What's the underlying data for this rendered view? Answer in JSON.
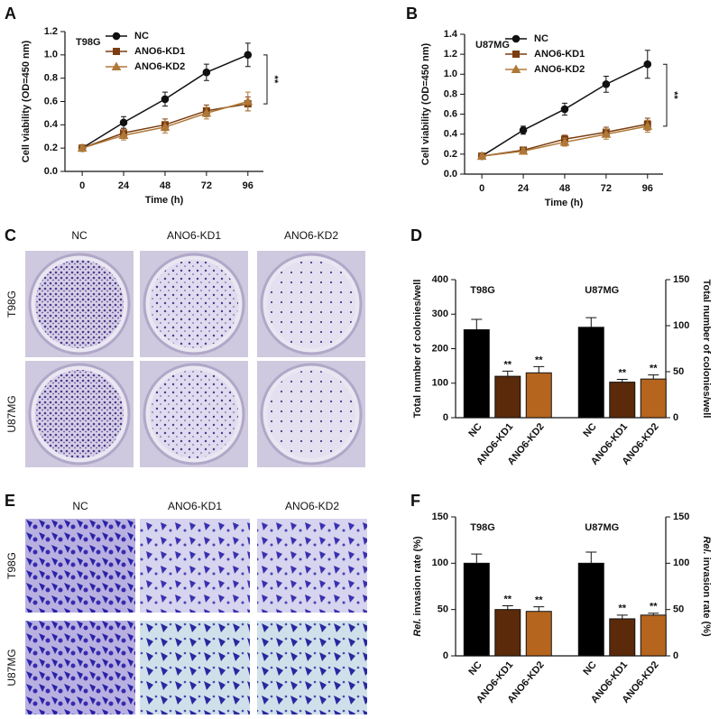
{
  "chart_data": [
    {
      "type": "line",
      "panel": "A",
      "title": "T98G",
      "xlabel": "Time (h)",
      "ylabel": "Cell viability (OD=450 nm)",
      "x": [
        0,
        24,
        48,
        72,
        96
      ],
      "xlim": [
        -10,
        105
      ],
      "xticks": [
        0,
        24,
        48,
        72,
        96
      ],
      "ylim": [
        0,
        1.2
      ],
      "yticks": [
        {
          "value": 0,
          "label": "0.0"
        },
        0.2,
        0.4,
        0.6,
        0.8,
        {
          "value": 1,
          "label": "1.0"
        },
        1.2
      ],
      "series": [
        {
          "name": "NC",
          "color": "#111111",
          "marker": "circle",
          "values": [
            0.2,
            0.42,
            0.62,
            0.85,
            1.0
          ],
          "errors": [
            0.02,
            0.05,
            0.06,
            0.07,
            0.1
          ]
        },
        {
          "name": "ANO6-KD1",
          "color": "#7a3e10",
          "marker": "square",
          "values": [
            0.2,
            0.33,
            0.4,
            0.52,
            0.58
          ],
          "errors": [
            0.02,
            0.04,
            0.05,
            0.05,
            0.06
          ]
        },
        {
          "name": "ANO6-KD2",
          "color": "#b07838",
          "marker": "triangle",
          "values": [
            0.2,
            0.31,
            0.38,
            0.5,
            0.6
          ],
          "errors": [
            0.02,
            0.04,
            0.05,
            0.05,
            0.08
          ]
        }
      ],
      "annotation": "**"
    },
    {
      "type": "line",
      "panel": "B",
      "title": "U87MG",
      "xlabel": "Time (h)",
      "ylabel": "Cell viability (OD=450 nm)",
      "x": [
        0,
        24,
        48,
        72,
        96
      ],
      "xlim": [
        -10,
        105
      ],
      "xticks": [
        0,
        24,
        48,
        72,
        96
      ],
      "ylim": [
        0,
        1.4
      ],
      "yticks": [
        {
          "value": 0,
          "label": "0.0"
        },
        0.2,
        0.4,
        0.6,
        0.8,
        {
          "value": 1,
          "label": "1.0"
        },
        1.2,
        1.4
      ],
      "series": [
        {
          "name": "NC",
          "color": "#111111",
          "marker": "circle",
          "values": [
            0.18,
            0.44,
            0.65,
            0.9,
            1.1
          ],
          "errors": [
            0.02,
            0.04,
            0.06,
            0.08,
            0.14
          ]
        },
        {
          "name": "ANO6-KD1",
          "color": "#7a3e10",
          "marker": "square",
          "values": [
            0.18,
            0.24,
            0.35,
            0.42,
            0.5
          ],
          "errors": [
            0.02,
            0.03,
            0.04,
            0.05,
            0.06
          ]
        },
        {
          "name": "ANO6-KD2",
          "color": "#b07838",
          "marker": "triangle",
          "values": [
            0.18,
            0.23,
            0.32,
            0.4,
            0.48
          ],
          "errors": [
            0.02,
            0.03,
            0.04,
            0.05,
            0.06
          ]
        }
      ],
      "annotation": "**"
    },
    {
      "type": "bar",
      "panel": "D",
      "ylabel": "Total number of colonies/well",
      "y2label": "Total number of colonies/well",
      "groups": [
        "T98G",
        "U87MG"
      ],
      "categories": [
        "NC",
        "ANO6-KD1",
        "ANO6-KD2",
        "NC",
        "ANO6-KD1",
        "ANO6-KD2"
      ],
      "colors": [
        "#000000",
        "#5a2a0a",
        "#b5651d",
        "#000000",
        "#5a2a0a",
        "#b5651d"
      ],
      "values": [
        255,
        120,
        130,
        262,
        103,
        112
      ],
      "errors": [
        30,
        15,
        18,
        28,
        8,
        12
      ],
      "significance": [
        null,
        "**",
        "**",
        null,
        "**",
        "**"
      ],
      "ylim": [
        0,
        400
      ],
      "yticks": [
        0,
        100,
        200,
        300,
        400
      ],
      "y2lim": [
        0,
        150
      ],
      "y2ticks": [
        0,
        50,
        100,
        150
      ]
    },
    {
      "type": "bar",
      "panel": "F",
      "ylabel_italic": "Rel.",
      "ylabel": "invasion rate (%)",
      "y2label_italic": "Rel.",
      "y2label": "invasion rate (%)",
      "groups": [
        "T98G",
        "U87MG"
      ],
      "categories": [
        "NC",
        "ANO6-KD1",
        "ANO6-KD2",
        "NC",
        "ANO6-KD1",
        "ANO6-KD2"
      ],
      "colors": [
        "#000000",
        "#5a2a0a",
        "#b5651d",
        "#000000",
        "#5a2a0a",
        "#b5651d"
      ],
      "values": [
        100,
        50,
        48,
        100,
        40,
        44
      ],
      "errors": [
        10,
        4,
        5,
        12,
        4,
        2
      ],
      "significance": [
        null,
        "**",
        "**",
        null,
        "**",
        "**"
      ],
      "ylim": [
        0,
        150
      ],
      "yticks": [
        0,
        50,
        100,
        150
      ],
      "y2lim": [
        0,
        150
      ],
      "y2ticks": [
        0,
        50,
        100,
        150
      ]
    }
  ],
  "panel_c": {
    "panel": "C",
    "columns": [
      "NC",
      "ANO6-KD1",
      "ANO6-KD2"
    ],
    "rows": [
      "T98G",
      "U87MG"
    ]
  },
  "panel_e": {
    "panel": "E",
    "columns": [
      "NC",
      "ANO6-KD1",
      "ANO6-KD2"
    ],
    "rows": [
      "T98G",
      "U87MG"
    ]
  }
}
